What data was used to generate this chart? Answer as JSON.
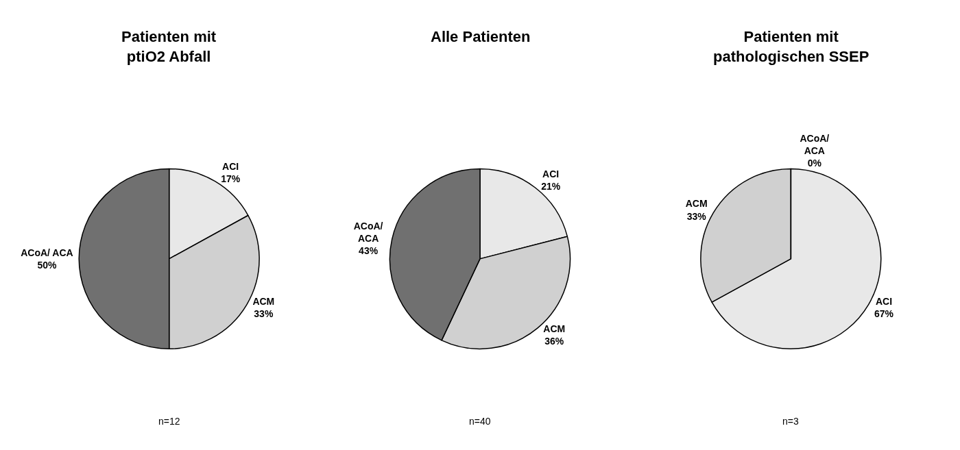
{
  "chart_data": [
    {
      "type": "pie",
      "title": "Patienten mit\nptiO2 Abfall",
      "categories": [
        "ACI",
        "ACM",
        "ACoA/ ACA"
      ],
      "values": [
        17,
        33,
        50
      ],
      "value_labels": [
        "17%",
        "33%",
        "50%"
      ],
      "colors": [
        "#e8e8e8",
        "#d0d0d0",
        "#707070"
      ],
      "annotations": [
        "n=12"
      ]
    },
    {
      "type": "pie",
      "title": "Alle Patienten",
      "categories": [
        "ACI",
        "ACM",
        "ACoA/\nACA"
      ],
      "values": [
        21,
        36,
        43
      ],
      "value_labels": [
        "21%",
        "36%",
        "43%"
      ],
      "colors": [
        "#e8e8e8",
        "#d0d0d0",
        "#707070"
      ],
      "annotations": [
        "n=40"
      ]
    },
    {
      "type": "pie",
      "title": "Patienten mit\npathologischen SSEP",
      "categories": [
        "ACI",
        "ACM",
        "ACoA/\nACA"
      ],
      "values": [
        67,
        33,
        0
      ],
      "value_labels": [
        "67%",
        "33%",
        "0%"
      ],
      "colors": [
        "#e8e8e8",
        "#d0d0d0",
        "#707070"
      ],
      "annotations": [
        "n=3"
      ]
    }
  ]
}
